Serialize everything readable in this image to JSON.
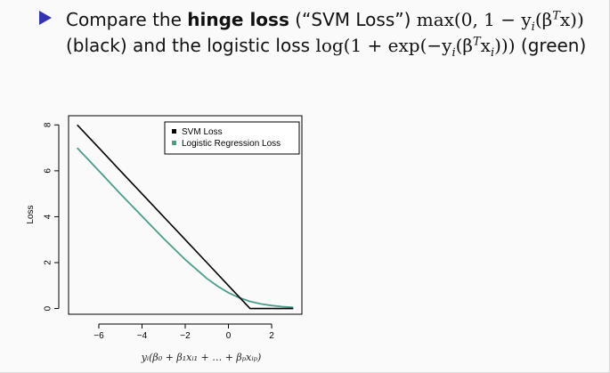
{
  "bullet": {
    "word_compare": "Compare the",
    "hinge_loss": "hinge loss",
    "svm_quote": "(“SVM Loss”)",
    "math_hinge": "max(0, 1 − y",
    "math_sub_i": "i",
    "math_beta": "(β",
    "math_T": "T",
    "math_x_close": "x))",
    "black_and": "(black) and the logistic loss",
    "math_log": "log(1 + exp(−y",
    "math_beta2": "(β",
    "math_x2": "x",
    "math_close2": ")))",
    "green": "(green)"
  },
  "chart_data": {
    "type": "line",
    "xlabel": "yᵢ(β₀ + β₁xᵢ₁ + … + βₚxᵢₚ)",
    "ylabel": "Loss",
    "xlim": [
      -7.4,
      3.4
    ],
    "ylim": [
      -0.25,
      8.4
    ],
    "x_ticks": [
      -6,
      -4,
      -2,
      0,
      2
    ],
    "x_tick_labels": [
      "−6",
      "−4",
      "−2",
      "0",
      "2"
    ],
    "y_ticks": [
      0,
      2,
      4,
      6,
      8
    ],
    "y_tick_labels": [
      "0",
      "2",
      "4",
      "6",
      "8"
    ],
    "legend_position": "top-right",
    "series": [
      {
        "name": "SVM Loss",
        "color": "#000000",
        "x": [
          -7,
          -6,
          -5,
          -4,
          -3,
          -2,
          -1,
          0,
          1,
          2,
          3
        ],
        "y": [
          8,
          7,
          6,
          5,
          4,
          3,
          2,
          1,
          0,
          0,
          0
        ]
      },
      {
        "name": "Logistic Regression Loss",
        "color": "#4a9d8b",
        "x": [
          -7,
          -6,
          -5,
          -4,
          -3,
          -2,
          -1,
          -0.5,
          0,
          0.5,
          1,
          1.5,
          2,
          2.5,
          3
        ],
        "y": [
          7.0,
          6.0,
          5.0,
          4.02,
          3.05,
          2.13,
          1.31,
          0.97,
          0.69,
          0.47,
          0.31,
          0.2,
          0.13,
          0.08,
          0.05
        ]
      }
    ]
  }
}
